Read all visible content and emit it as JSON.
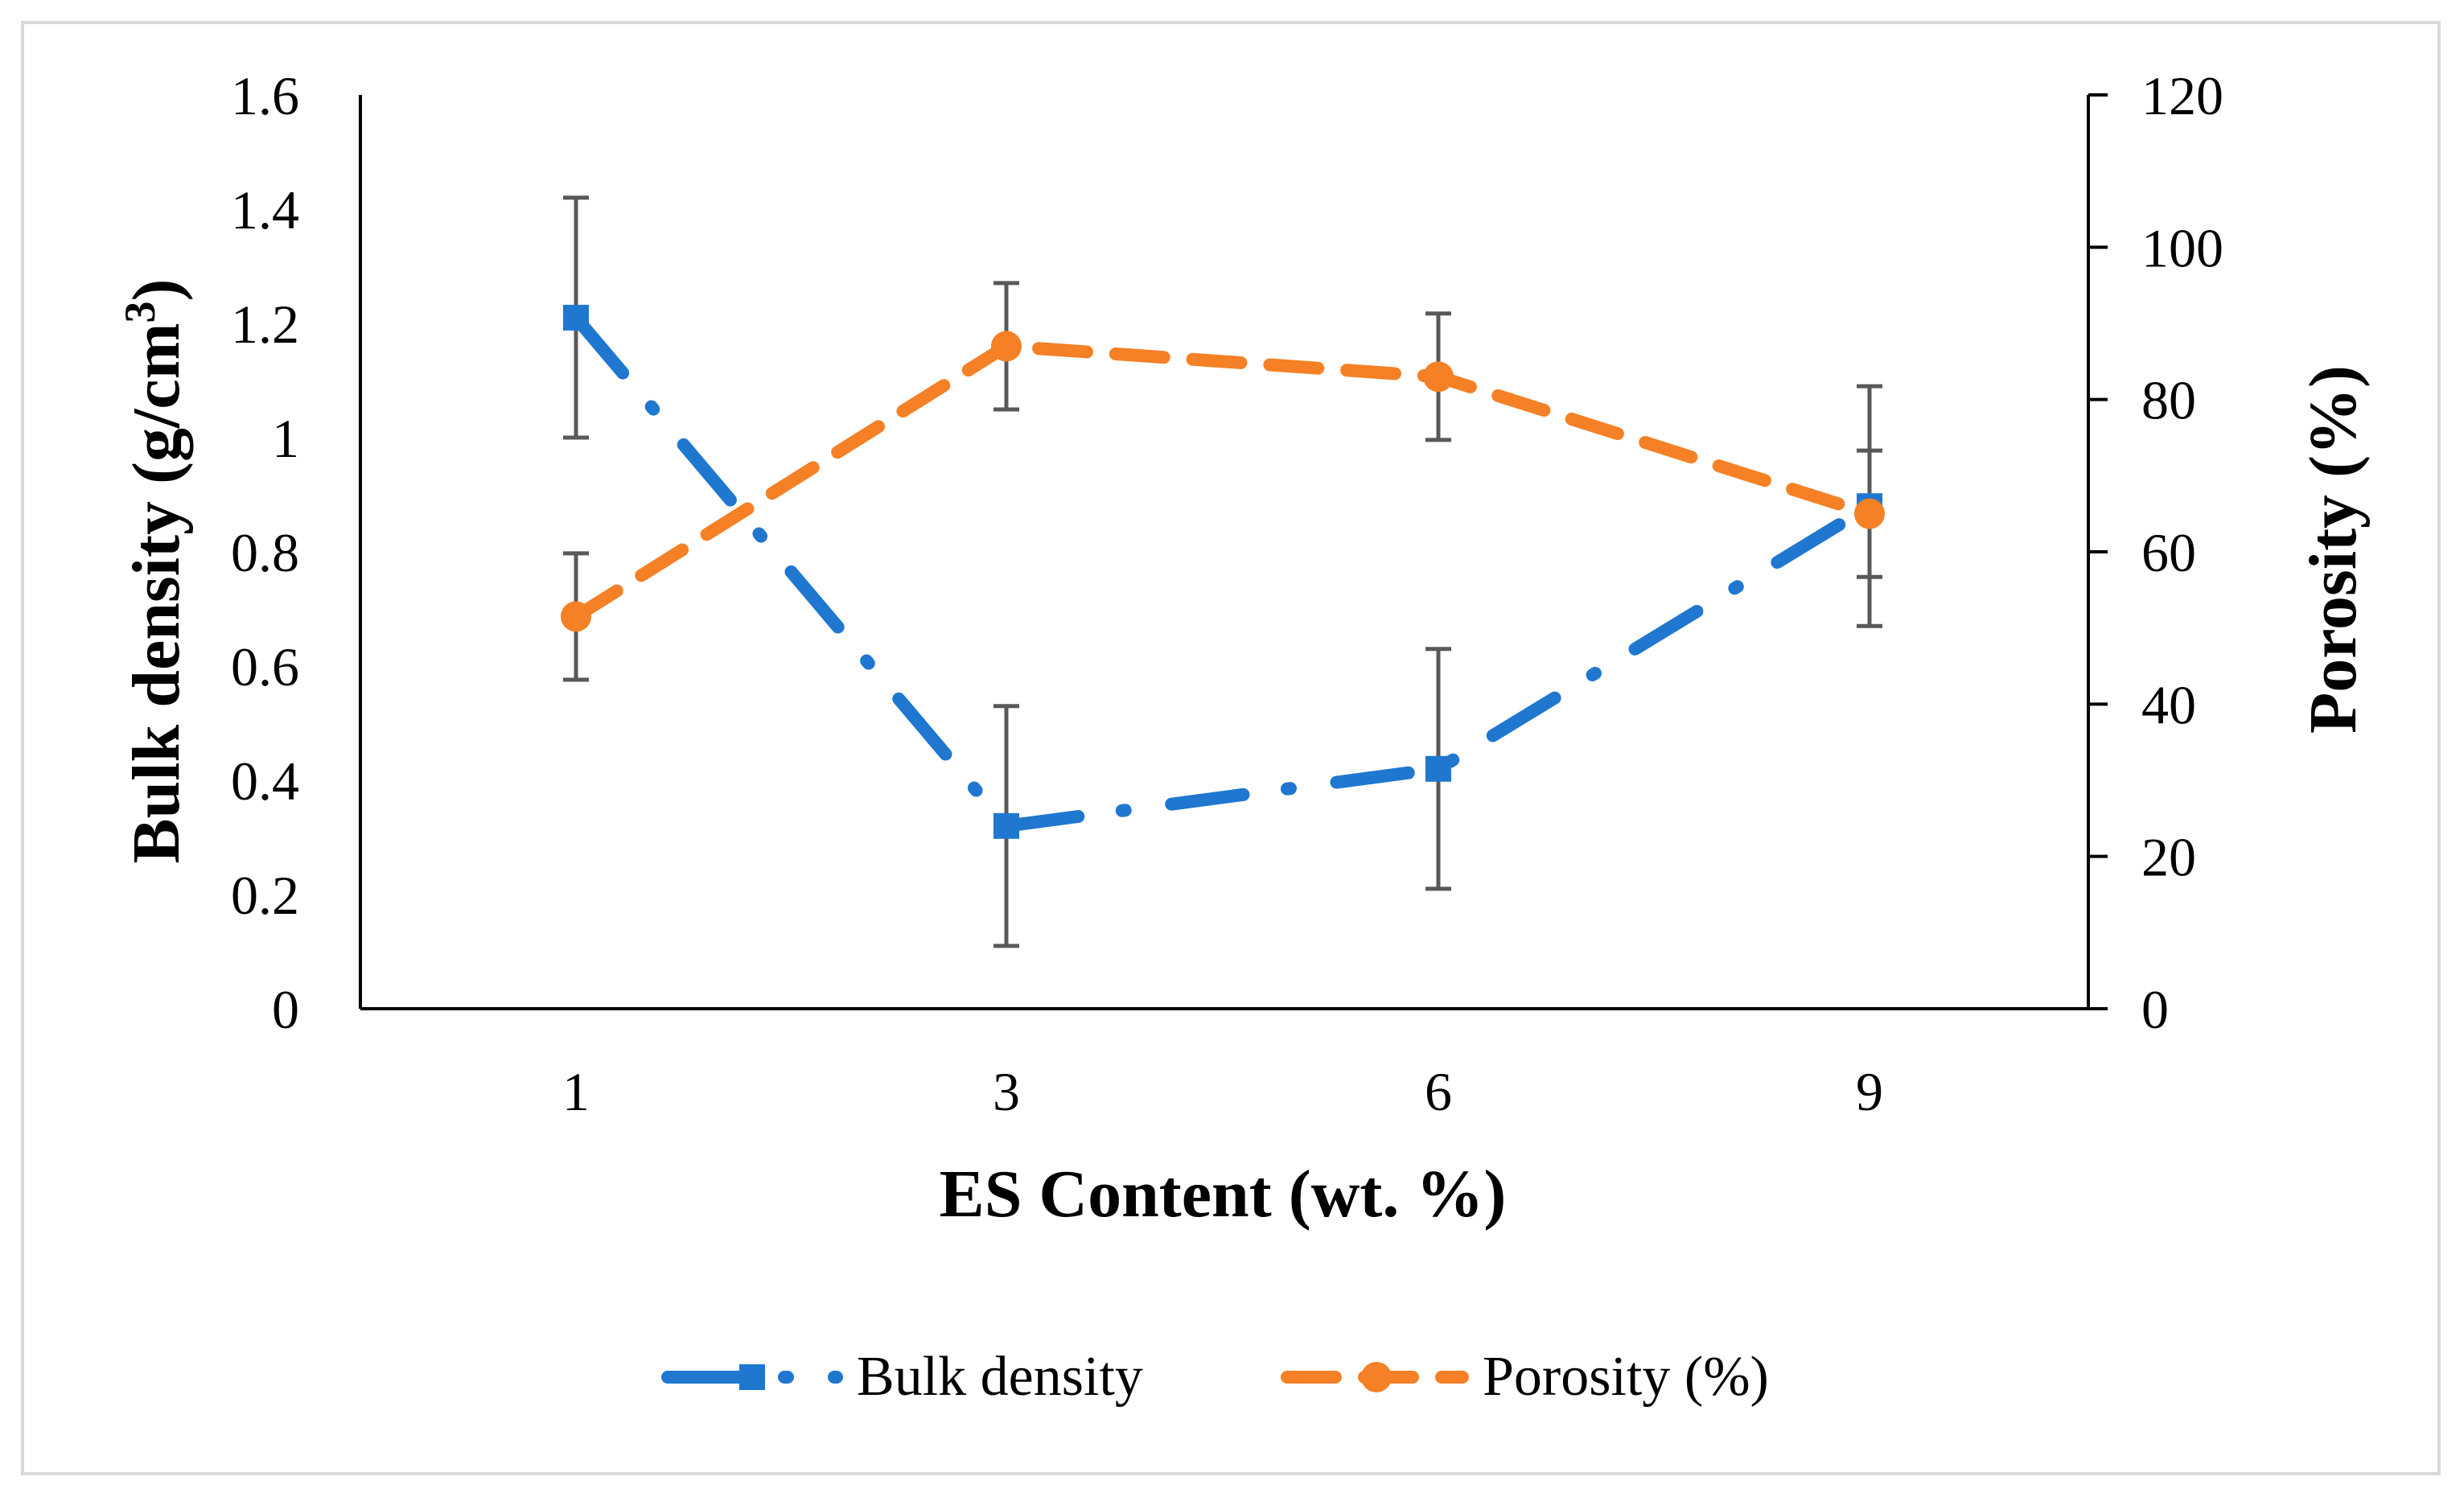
{
  "chart_data": {
    "type": "line",
    "title": "",
    "xlabel": "ES Content (wt. %)",
    "ylabel": "Bulk density (g/cm",
    "ylabel_superscript": "3",
    "ylabel_close": ")",
    "y2label": "Porosity (%)",
    "categories": [
      "1",
      "3",
      "6",
      "9"
    ],
    "ylim": [
      0,
      1.6
    ],
    "yticks": [
      "0",
      "0.2",
      "0.4",
      "0.6",
      "0.8",
      "1",
      "1.2",
      "1.4",
      "1.6"
    ],
    "y2lim": [
      0,
      120
    ],
    "y2ticks": [
      "0",
      "20",
      "40",
      "60",
      "80",
      "100",
      "120"
    ],
    "legend_position": "bottom",
    "series": [
      {
        "name": "Bulk density",
        "axis": "left",
        "values": [
          1.21,
          0.32,
          0.42,
          0.88
        ],
        "error": [
          0.21,
          0.21,
          0.21,
          0.21
        ],
        "color": "#1f77d0",
        "marker": "square",
        "line_style": "dash-dot"
      },
      {
        "name": "Porosity (%)",
        "axis": "right",
        "values": [
          51.5,
          87,
          83,
          65
        ],
        "error": [
          8.3,
          8.3,
          8.3,
          8.3
        ],
        "color": "#f58025",
        "marker": "circle",
        "line_style": "dash"
      }
    ]
  }
}
